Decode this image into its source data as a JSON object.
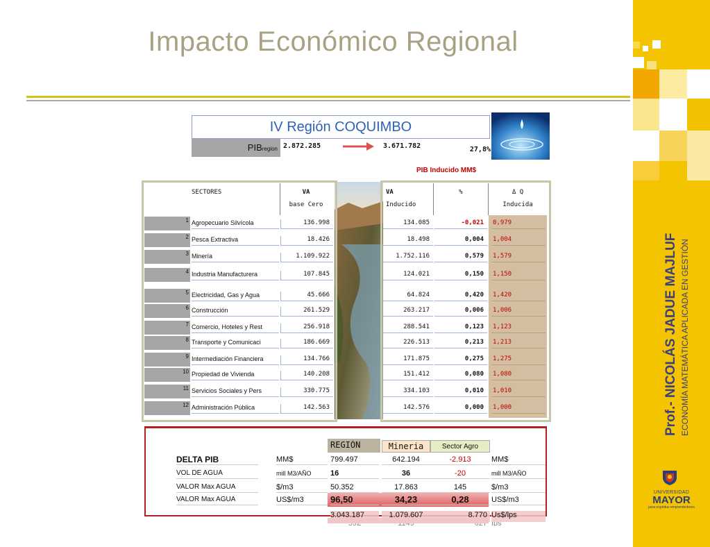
{
  "slide": {
    "title": "Impacto Económico Regional"
  },
  "sidebar": {
    "author_name": "Prof.- NICOLÁS JADUE MAJLUF",
    "author_subtitle": "ECONOMÍA MATEMÁTICA APLICADA EN GESTIÓN",
    "university_line1": "UNIVERSIDAD",
    "university_line2": "MAYOR",
    "university_tagline": "para espíritus emprendedores",
    "accent_color": "#f5c400"
  },
  "header_block": {
    "region_title": "IV Región COQUIMBO",
    "pib_label": "PIB",
    "pib_sub": "region",
    "pib_base": "2.872.285",
    "pib_induced": "3.671.782",
    "pib_percent": "27,8%",
    "pib_inducido_label": "PIB Inducido MM$"
  },
  "sectors_table": {
    "col_sectores": "SECTORES",
    "col_va": "VA",
    "col_va_sub": "base Cero",
    "rows": [
      {
        "n": "1",
        "name": "Agropecuario Silvícola",
        "va": "136.998"
      },
      {
        "n": "2",
        "name": "Pesca Extractiva",
        "va": "18.426"
      },
      {
        "n": "3",
        "name": "Minería",
        "va": "1.109.922"
      },
      {
        "n": "4",
        "name": "Industria Manufacturera",
        "va": "107.845"
      },
      {
        "n": "5",
        "name": "Electricidad, Gas y Agua",
        "va": "45.666"
      },
      {
        "n": "6",
        "name": "Construcción",
        "va": "261.529"
      },
      {
        "n": "7",
        "name": "Comercio, Hoteles y Rest",
        "va": "256.918"
      },
      {
        "n": "8",
        "name": "Transporte y Comunicaci",
        "va": "186.669"
      },
      {
        "n": "9",
        "name": "Intermediación Financiera",
        "va": "134.766"
      },
      {
        "n": "10",
        "name": "Propiedad de Vivienda",
        "va": "140.208"
      },
      {
        "n": "11",
        "name": "Servicios Sociales y Pers",
        "va": "330.775"
      },
      {
        "n": "12",
        "name": "Administración Pública",
        "va": "142.563"
      }
    ]
  },
  "induced_table": {
    "col_va": "VA",
    "col_va_sub": "Inducido",
    "col_pct": "%",
    "col_dq": "Δ Q",
    "col_dq_sub": "Inducida",
    "rows": [
      {
        "va": "134.085",
        "pct": "-0,021",
        "dq": "0,979"
      },
      {
        "va": "18.498",
        "pct": "0,004",
        "dq": "1,004"
      },
      {
        "va": "1.752.116",
        "pct": "0,579",
        "dq": "1,579"
      },
      {
        "va": "124.021",
        "pct": "0,150",
        "dq": "1,150"
      },
      {
        "va": "64.824",
        "pct": "0,420",
        "dq": "1,420"
      },
      {
        "va": "263.217",
        "pct": "0,006",
        "dq": "1,006"
      },
      {
        "va": "288.541",
        "pct": "0,123",
        "dq": "1,123"
      },
      {
        "va": "226.513",
        "pct": "0,213",
        "dq": "1,213"
      },
      {
        "va": "171.875",
        "pct": "0,275",
        "dq": "1,275"
      },
      {
        "va": "151.412",
        "pct": "0,080",
        "dq": "1,080"
      },
      {
        "va": "334.103",
        "pct": "0,010",
        "dq": "1,010"
      },
      {
        "va": "142.576",
        "pct": "0,000",
        "dq": "1,000"
      }
    ]
  },
  "bottom_table": {
    "col_region": "REGIÓN",
    "col_mineria": "Mineria",
    "col_agro": "Sector Agro",
    "rows": [
      {
        "label": "DELTA PIB",
        "unit": "MM$",
        "region": "799.497",
        "mineria": "642.194",
        "agro": "-2.913",
        "unit2": "MM$"
      },
      {
        "label": "VOL DE AGUA",
        "unit": "mill M3/AÑO",
        "region": "16",
        "mineria": "36",
        "agro": "-20",
        "unit2": "mill M3/AÑO"
      },
      {
        "label": "VALOR Max AGUA",
        "unit": "$/m3",
        "region": "50.352",
        "mineria": "17.863",
        "agro": "145",
        "unit2": "$/m3"
      },
      {
        "label": "VALOR Max AGUA",
        "unit": "US$/m3",
        "region": "96,50",
        "mineria": "34,23",
        "agro": "0,28",
        "unit2": "US$/m3"
      }
    ],
    "extra_row": {
      "region": "3.043.187",
      "mineria": "1.079.607",
      "agro": "8.770",
      "unit2": "Us$/lps"
    },
    "cut_row": {
      "region": "592",
      "mineria": "1149",
      "agro": "627",
      "unit2": "Ips"
    }
  }
}
